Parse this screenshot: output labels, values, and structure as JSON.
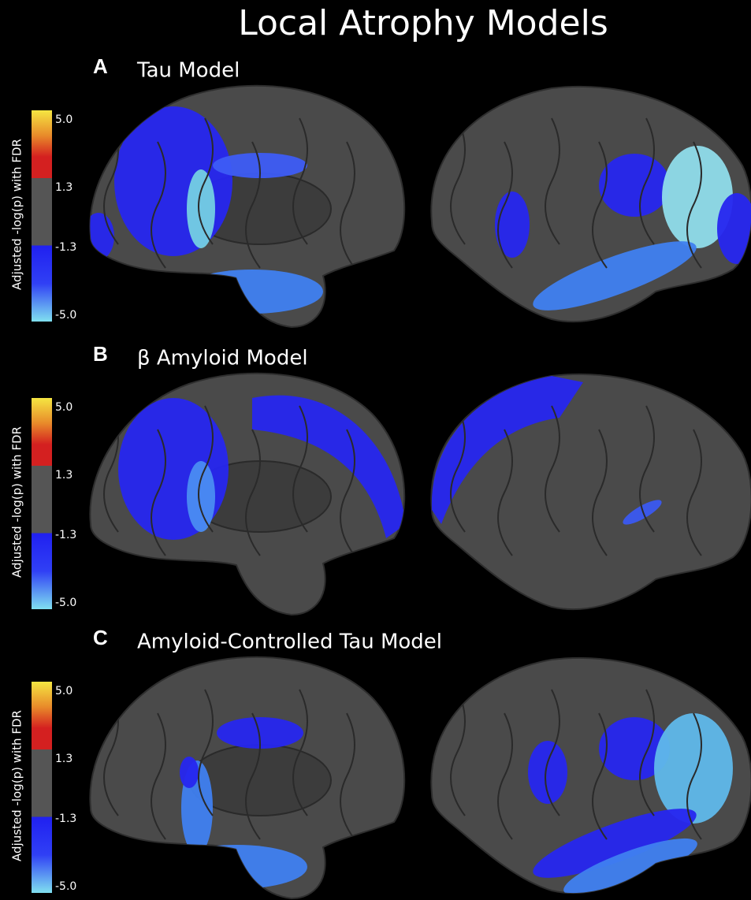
{
  "title": "Local Atrophy Models",
  "panels": [
    {
      "letter": "A",
      "title": "Tau Model",
      "colorbar": {
        "label": "Adjusted -log(p) with FDR",
        "ticks": [
          "5.0",
          "1.3",
          "-1.3",
          "-5.0"
        ]
      }
    },
    {
      "letter": "B",
      "title": "β Amyloid Model",
      "colorbar": {
        "label": "Adjusted -log(p) with FDR",
        "ticks": [
          "5.0",
          "1.3",
          "-1.3",
          "-5.0"
        ]
      }
    },
    {
      "letter": "C",
      "title": "Amyloid-Controlled Tau Model",
      "colorbar": {
        "label": "Adjusted -log(p) with FDR",
        "ticks": [
          "5.0",
          "1.3",
          "-1.3",
          "-5.0"
        ]
      }
    }
  ]
}
